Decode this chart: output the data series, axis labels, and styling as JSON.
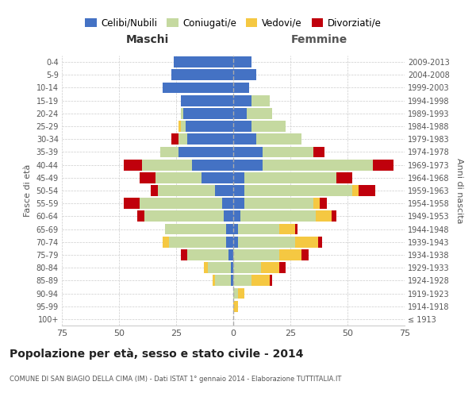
{
  "age_groups": [
    "100+",
    "95-99",
    "90-94",
    "85-89",
    "80-84",
    "75-79",
    "70-74",
    "65-69",
    "60-64",
    "55-59",
    "50-54",
    "45-49",
    "40-44",
    "35-39",
    "30-34",
    "25-29",
    "20-24",
    "15-19",
    "10-14",
    "5-9",
    "0-4"
  ],
  "birth_years": [
    "≤ 1913",
    "1914-1918",
    "1919-1923",
    "1924-1928",
    "1929-1933",
    "1934-1938",
    "1939-1943",
    "1944-1948",
    "1949-1953",
    "1954-1958",
    "1959-1963",
    "1964-1968",
    "1969-1973",
    "1974-1978",
    "1979-1983",
    "1984-1988",
    "1989-1993",
    "1994-1998",
    "1999-2003",
    "2004-2008",
    "2009-2013"
  ],
  "maschi": {
    "celibi": [
      0,
      0,
      0,
      1,
      1,
      2,
      3,
      3,
      4,
      5,
      8,
      14,
      18,
      24,
      20,
      21,
      22,
      23,
      31,
      27,
      26
    ],
    "coniugati": [
      0,
      0,
      0,
      7,
      10,
      18,
      25,
      27,
      35,
      36,
      25,
      20,
      22,
      8,
      4,
      2,
      1,
      0,
      0,
      0,
      0
    ],
    "vedovi": [
      0,
      0,
      0,
      1,
      2,
      0,
      3,
      0,
      0,
      0,
      0,
      0,
      0,
      0,
      0,
      1,
      0,
      0,
      0,
      0,
      0
    ],
    "divorziati": [
      0,
      0,
      0,
      0,
      0,
      3,
      0,
      0,
      3,
      7,
      3,
      7,
      8,
      0,
      3,
      0,
      0,
      0,
      0,
      0,
      0
    ]
  },
  "femmine": {
    "nubili": [
      0,
      0,
      0,
      0,
      0,
      0,
      2,
      2,
      3,
      5,
      5,
      5,
      13,
      13,
      10,
      8,
      6,
      8,
      7,
      10,
      8
    ],
    "coniugate": [
      0,
      0,
      2,
      8,
      12,
      20,
      25,
      18,
      33,
      30,
      47,
      40,
      48,
      22,
      20,
      15,
      11,
      8,
      0,
      0,
      0
    ],
    "vedove": [
      0,
      2,
      3,
      8,
      8,
      10,
      10,
      7,
      7,
      3,
      3,
      0,
      0,
      0,
      0,
      0,
      0,
      0,
      0,
      0,
      0
    ],
    "divorziate": [
      0,
      0,
      0,
      1,
      3,
      3,
      2,
      1,
      2,
      3,
      7,
      7,
      9,
      5,
      0,
      0,
      0,
      0,
      0,
      0,
      0
    ]
  },
  "colors": {
    "celibi": "#4472C4",
    "coniugati": "#C5D9A0",
    "vedovi": "#F5C842",
    "divorziati": "#C0000C"
  },
  "xlim": 75,
  "title": "Popolazione per età, sesso e stato civile - 2014",
  "subtitle": "COMUNE DI SAN BIAGIO DELLA CIMA (IM) - Dati ISTAT 1° gennaio 2014 - Elaborazione TUTTITALIA.IT",
  "xlabel_left": "Maschi",
  "xlabel_right": "Femmine",
  "ylabel_left": "Fasce di età",
  "ylabel_right": "Anni di nascita",
  "legend_labels": [
    "Celibi/Nubili",
    "Coniugati/e",
    "Vedovi/e",
    "Divorziati/e"
  ],
  "background_color": "#ffffff",
  "grid_color": "#cccccc"
}
